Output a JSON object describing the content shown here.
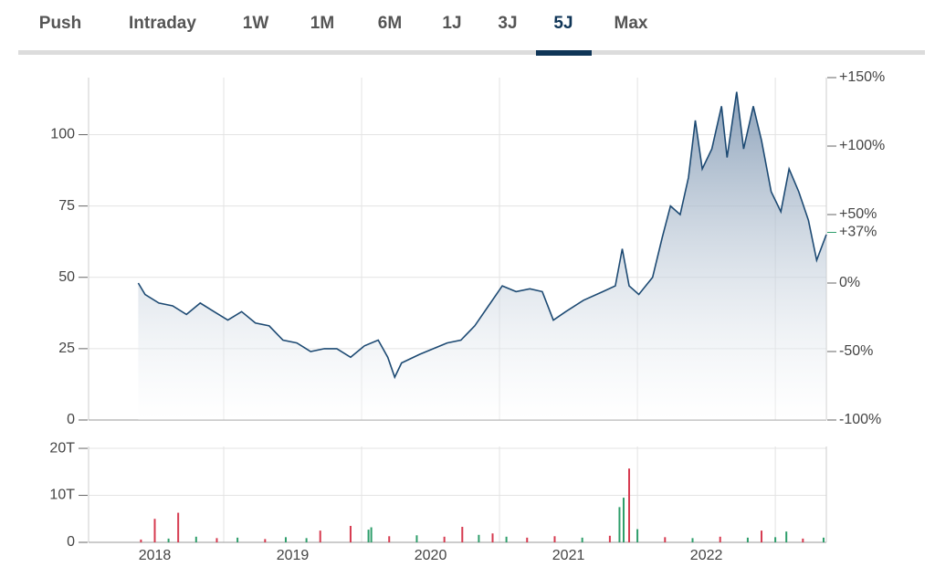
{
  "tabs": [
    "Push",
    "Intraday",
    "1W",
    "1M",
    "6M",
    "1J",
    "3J",
    "5J",
    "Max"
  ],
  "active_tab": 7,
  "chart_data": [
    {
      "type": "area",
      "x": [
        2017.88,
        2017.93,
        2018.03,
        2018.13,
        2018.23,
        2018.33,
        2018.43,
        2018.53,
        2018.63,
        2018.73,
        2018.83,
        2018.93,
        2019.03,
        2019.13,
        2019.23,
        2019.32,
        2019.42,
        2019.52,
        2019.62,
        2019.69,
        2019.74,
        2019.79,
        2019.92,
        2020.02,
        2020.12,
        2020.22,
        2020.32,
        2020.42,
        2020.52,
        2020.62,
        2020.72,
        2020.81,
        2020.89,
        2020.98,
        2021.11,
        2021.25,
        2021.34,
        2021.39,
        2021.44,
        2021.51,
        2021.61,
        2021.68,
        2021.74,
        2021.81,
        2021.87,
        2021.92,
        2021.97,
        2022.04,
        2022.11,
        2022.15,
        2022.22,
        2022.27,
        2022.34,
        2022.4,
        2022.47,
        2022.54,
        2022.6,
        2022.67,
        2022.74,
        2022.8,
        2022.87
      ],
      "values": [
        48,
        44,
        41,
        40,
        37,
        41,
        38,
        35,
        38,
        34,
        33,
        28,
        27,
        24,
        25,
        25,
        22,
        26,
        28,
        22,
        15,
        20,
        23,
        25,
        27,
        28,
        33,
        40,
        47,
        45,
        46,
        45,
        35,
        38,
        42,
        45,
        47,
        60,
        47,
        44,
        50,
        64,
        75,
        72,
        85,
        105,
        88,
        95,
        110,
        92,
        115,
        95,
        110,
        98,
        80,
        73,
        88,
        80,
        70,
        56,
        65
      ],
      "color": "#1d4a73",
      "xlim": [
        2017.52,
        2022.87
      ],
      "xgrid": [
        2018.5,
        2019.5,
        2020.5,
        2021.5,
        2022.5
      ],
      "ylim": [
        0,
        120
      ],
      "yticks": [
        0,
        25,
        50,
        75,
        100
      ],
      "y2lim": [
        -100,
        150
      ],
      "y2ticks": [
        {
          "value": 150,
          "label": "+150%"
        },
        {
          "value": 100,
          "label": "+100%"
        },
        {
          "value": 50,
          "label": "+50%"
        },
        {
          "value": 0,
          "label": "0%"
        },
        {
          "value": -50,
          "label": "-50%"
        },
        {
          "value": -100,
          "label": "-100%"
        }
      ],
      "annotation": {
        "text": "+37%",
        "y2": 37,
        "color": "#2e9e6b"
      },
      "grid": true
    },
    {
      "type": "bar",
      "x": [
        2017.9,
        2018.0,
        2018.1,
        2018.17,
        2018.3,
        2018.45,
        2018.6,
        2018.8,
        2018.95,
        2019.1,
        2019.2,
        2019.42,
        2019.55,
        2019.57,
        2019.7,
        2019.9,
        2020.1,
        2020.23,
        2020.35,
        2020.45,
        2020.55,
        2020.7,
        2020.9,
        2021.1,
        2021.3,
        2021.37,
        2021.4,
        2021.44,
        2021.5,
        2021.7,
        2021.9,
        2022.1,
        2022.3,
        2022.4,
        2022.5,
        2022.58,
        2022.7,
        2022.85
      ],
      "values": [
        0.6,
        5.0,
        0.8,
        6.3,
        1.2,
        0.9,
        1.0,
        0.7,
        1.1,
        0.9,
        2.5,
        3.5,
        2.7,
        3.2,
        1.3,
        1.5,
        1.2,
        3.3,
        1.6,
        1.9,
        1.2,
        1.0,
        1.3,
        1.0,
        1.4,
        7.5,
        9.5,
        15.7,
        2.8,
        1.1,
        0.9,
        1.2,
        1.0,
        2.5,
        1.1,
        2.3,
        0.8,
        1.0
      ],
      "colors": [
        "#d63a4f",
        "#d63a4f",
        "#2e9e6b",
        "#d63a4f",
        "#2e9e6b",
        "#d63a4f",
        "#2e9e6b",
        "#d63a4f",
        "#2e9e6b",
        "#2e9e6b",
        "#d63a4f",
        "#d63a4f",
        "#2e9e6b",
        "#2e9e6b",
        "#d63a4f",
        "#2e9e6b",
        "#d63a4f",
        "#d63a4f",
        "#2e9e6b",
        "#d63a4f",
        "#2e9e6b",
        "#d63a4f",
        "#d63a4f",
        "#2e9e6b",
        "#d63a4f",
        "#2e9e6b",
        "#2e9e6b",
        "#d63a4f",
        "#2e9e6b",
        "#d63a4f",
        "#2e9e6b",
        "#d63a4f",
        "#2e9e6b",
        "#d63a4f",
        "#2e9e6b",
        "#2e9e6b",
        "#d63a4f",
        "#2e9e6b"
      ],
      "xlim": [
        2017.52,
        2022.87
      ],
      "xticks": [
        2018,
        2019,
        2020,
        2021,
        2022
      ],
      "xgrid": [
        2018.5,
        2019.5,
        2020.5,
        2021.5,
        2022.5
      ],
      "ylim": [
        0,
        20.4
      ],
      "yticks": [
        {
          "value": 0,
          "label": "0"
        },
        {
          "value": 10,
          "label": "10T"
        },
        {
          "value": 20,
          "label": "20T"
        }
      ],
      "grid": true
    }
  ]
}
